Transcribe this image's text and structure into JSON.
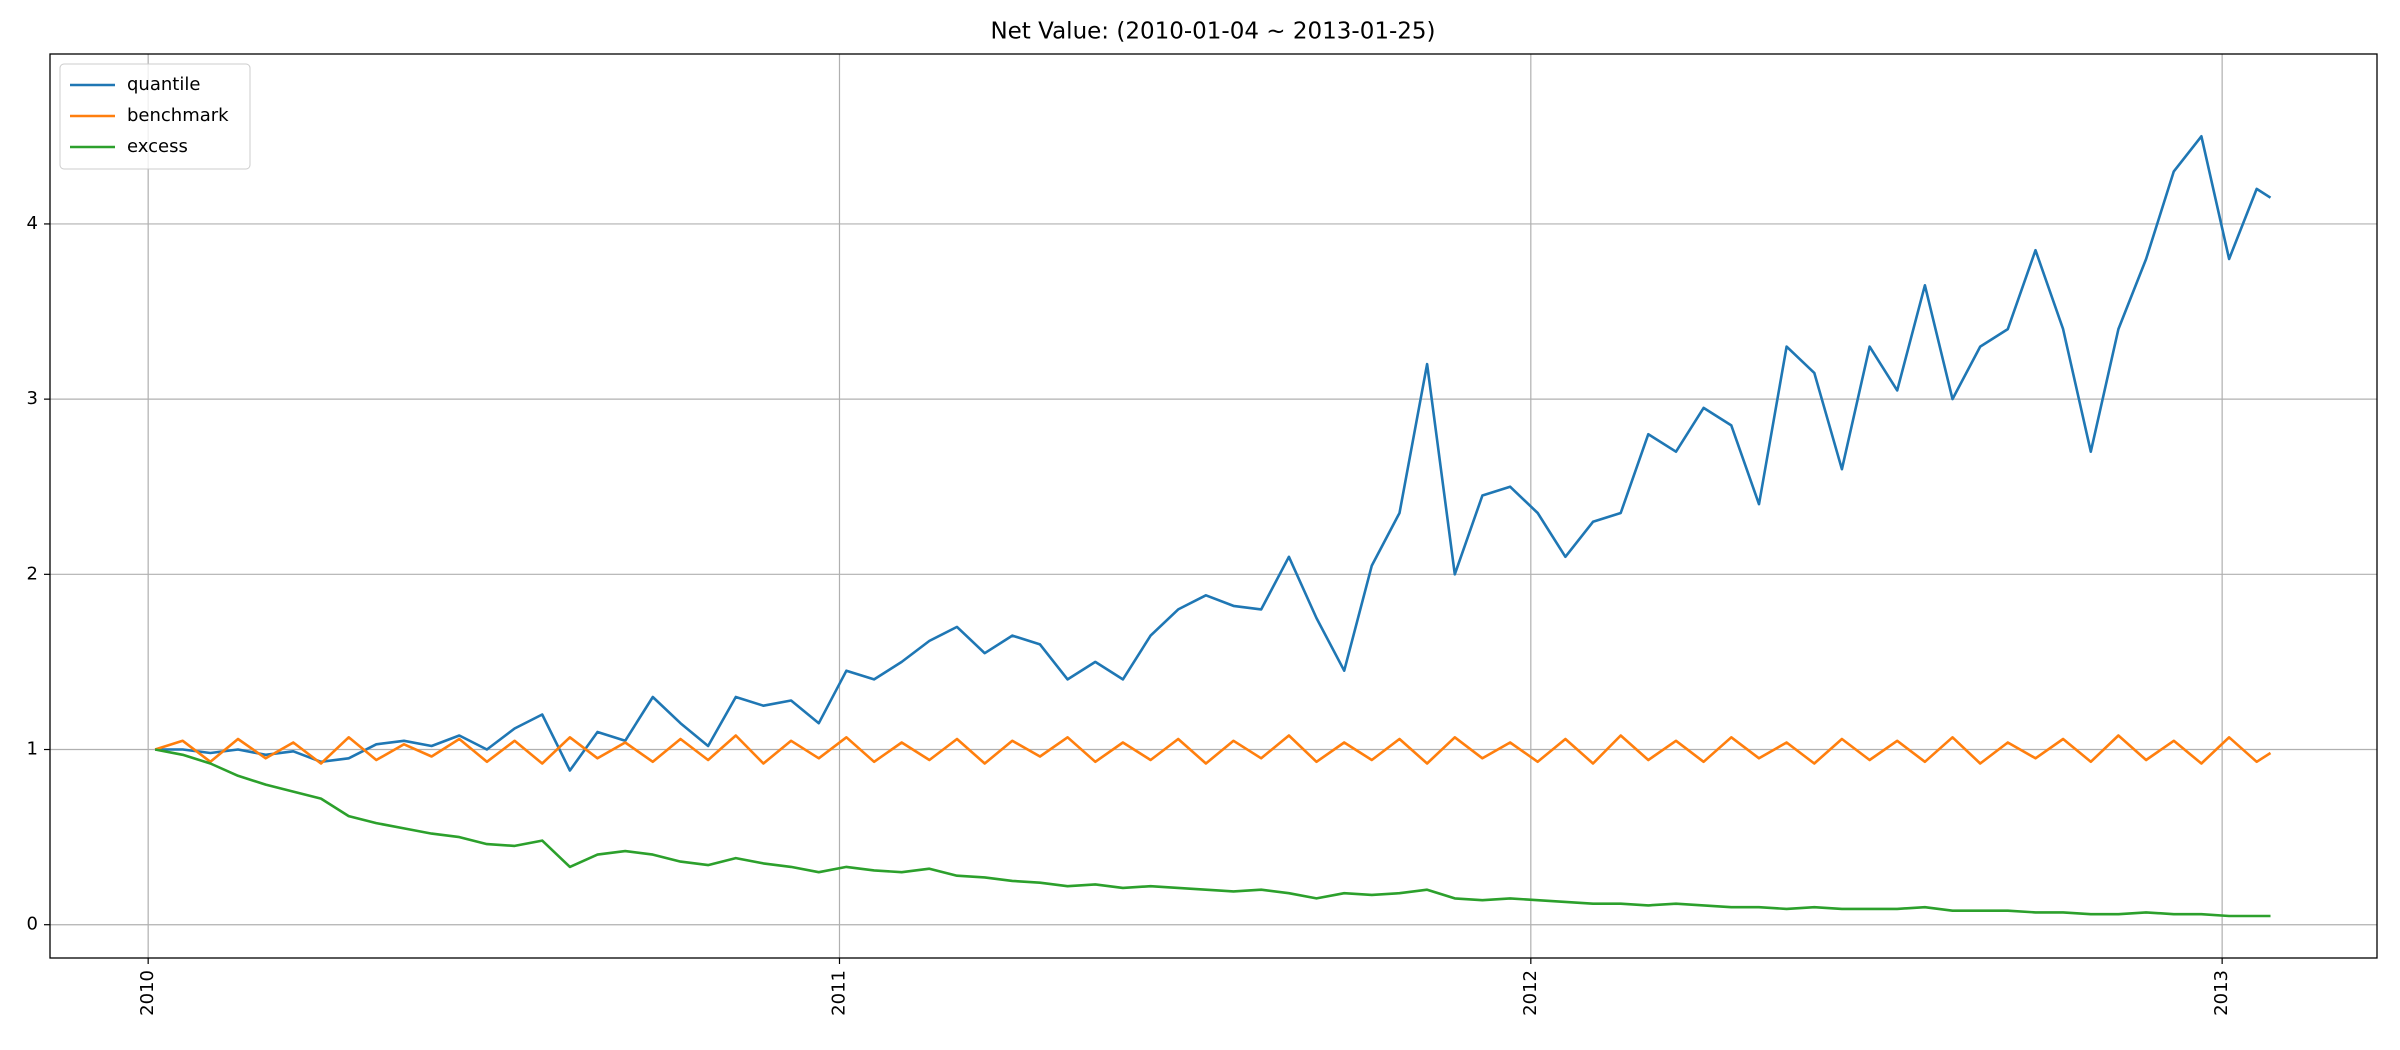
{
  "chart_data": {
    "type": "line",
    "title": "Net Value: (2010-01-04 ~ 2013-01-25)",
    "x": [
      2010.01,
      2010.05,
      2010.09,
      2010.13,
      2010.17,
      2010.21,
      2010.25,
      2010.29,
      2010.33,
      2010.37,
      2010.41,
      2010.45,
      2010.49,
      2010.53,
      2010.57,
      2010.61,
      2010.65,
      2010.69,
      2010.73,
      2010.77,
      2010.81,
      2010.85,
      2010.89,
      2010.93,
      2010.97,
      2011.01,
      2011.05,
      2011.09,
      2011.13,
      2011.17,
      2011.21,
      2011.25,
      2011.29,
      2011.33,
      2011.37,
      2011.41,
      2011.45,
      2011.49,
      2011.53,
      2011.57,
      2011.61,
      2011.65,
      2011.69,
      2011.73,
      2011.77,
      2011.81,
      2011.85,
      2011.89,
      2011.93,
      2011.97,
      2012.01,
      2012.05,
      2012.09,
      2012.13,
      2012.17,
      2012.21,
      2012.25,
      2012.29,
      2012.33,
      2012.37,
      2012.41,
      2012.45,
      2012.49,
      2012.53,
      2012.57,
      2012.61,
      2012.65,
      2012.69,
      2012.73,
      2012.77,
      2012.81,
      2012.85,
      2012.89,
      2012.93,
      2012.97,
      2013.01,
      2013.05,
      2013.07
    ],
    "series": [
      {
        "name": "quantile",
        "color": "#1f77b4",
        "values": [
          1.0,
          1.0,
          0.98,
          1.0,
          0.97,
          0.99,
          0.93,
          0.95,
          1.03,
          1.05,
          1.02,
          1.08,
          1.0,
          1.12,
          1.2,
          0.88,
          1.1,
          1.05,
          1.3,
          1.15,
          1.02,
          1.3,
          1.25,
          1.28,
          1.15,
          1.45,
          1.4,
          1.5,
          1.62,
          1.7,
          1.55,
          1.65,
          1.6,
          1.4,
          1.5,
          1.4,
          1.65,
          1.8,
          1.88,
          1.82,
          1.8,
          2.1,
          1.75,
          1.45,
          2.05,
          2.35,
          3.2,
          2.0,
          2.45,
          2.5,
          2.35,
          2.1,
          2.3,
          2.35,
          2.8,
          2.7,
          2.95,
          2.85,
          2.4,
          3.3,
          3.15,
          2.6,
          3.3,
          3.05,
          3.65,
          3.0,
          3.3,
          3.4,
          3.85,
          3.4,
          2.7,
          3.4,
          3.8,
          4.3,
          4.5,
          3.8,
          4.2,
          4.15
        ]
      },
      {
        "name": "benchmark",
        "color": "#ff7f0e",
        "values": [
          1.0,
          1.05,
          0.93,
          1.06,
          0.95,
          1.04,
          0.92,
          1.07,
          0.94,
          1.03,
          0.96,
          1.06,
          0.93,
          1.05,
          0.92,
          1.07,
          0.95,
          1.04,
          0.93,
          1.06,
          0.94,
          1.08,
          0.92,
          1.05,
          0.95,
          1.07,
          0.93,
          1.04,
          0.94,
          1.06,
          0.92,
          1.05,
          0.96,
          1.07,
          0.93,
          1.04,
          0.94,
          1.06,
          0.92,
          1.05,
          0.95,
          1.08,
          0.93,
          1.04,
          0.94,
          1.06,
          0.92,
          1.07,
          0.95,
          1.04,
          0.93,
          1.06,
          0.92,
          1.08,
          0.94,
          1.05,
          0.93,
          1.07,
          0.95,
          1.04,
          0.92,
          1.06,
          0.94,
          1.05,
          0.93,
          1.07,
          0.92,
          1.04,
          0.95,
          1.06,
          0.93,
          1.08,
          0.94,
          1.05,
          0.92,
          1.07,
          0.93,
          0.98
        ]
      },
      {
        "name": "excess",
        "color": "#2ca02c",
        "values": [
          1.0,
          0.97,
          0.92,
          0.85,
          0.8,
          0.76,
          0.72,
          0.62,
          0.58,
          0.55,
          0.52,
          0.5,
          0.46,
          0.45,
          0.48,
          0.33,
          0.4,
          0.42,
          0.4,
          0.36,
          0.34,
          0.38,
          0.35,
          0.33,
          0.3,
          0.33,
          0.31,
          0.3,
          0.32,
          0.28,
          0.27,
          0.25,
          0.24,
          0.22,
          0.23,
          0.21,
          0.22,
          0.21,
          0.2,
          0.19,
          0.2,
          0.18,
          0.15,
          0.18,
          0.17,
          0.18,
          0.2,
          0.15,
          0.14,
          0.15,
          0.14,
          0.13,
          0.12,
          0.12,
          0.11,
          0.12,
          0.11,
          0.1,
          0.1,
          0.09,
          0.1,
          0.09,
          0.09,
          0.09,
          0.1,
          0.08,
          0.08,
          0.08,
          0.07,
          0.07,
          0.06,
          0.06,
          0.07,
          0.06,
          0.06,
          0.05,
          0.05,
          0.05
        ]
      }
    ],
    "xlim": [
      2009.858,
      2013.224
    ],
    "xticks": [
      2010,
      2011,
      2012,
      2013
    ],
    "ylim": [
      -0.19,
      4.97
    ],
    "yticks": [
      0,
      1,
      2,
      3,
      4
    ],
    "grid": true,
    "legend": "upper left"
  }
}
